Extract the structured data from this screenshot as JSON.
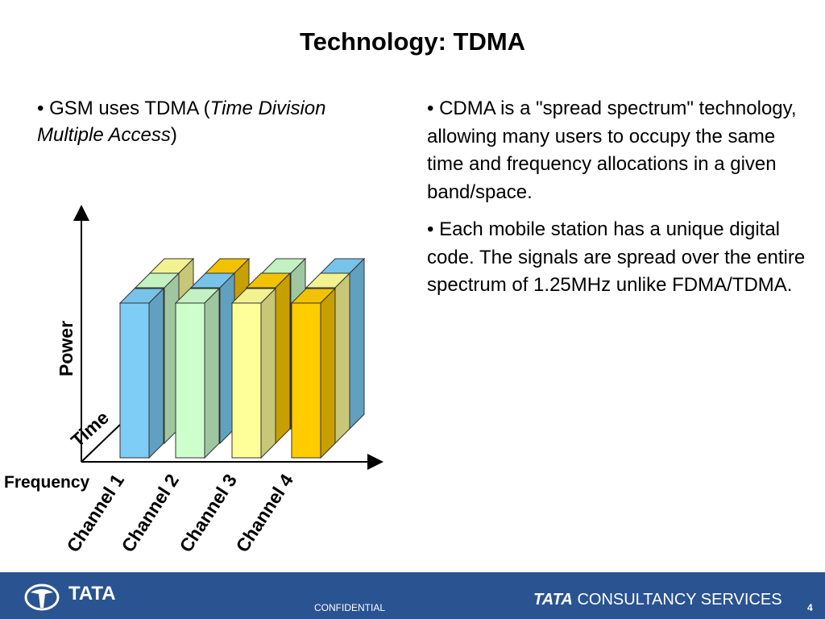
{
  "title": "Technology: TDMA",
  "left": {
    "bullet": "•",
    "text_before": " GSM uses TDMA (",
    "italic": "Time Division Multiple Access",
    "text_after": ")"
  },
  "right": {
    "bullets": [
      "• CDMA is a \"spread spectrum\" technology, allowing many users to occupy the same time and frequency allocations in a given band/space.",
      "• Each mobile station has a unique digital code. The signals are spread over the entire spectrum of 1.25MHz unlike FDMA/TDMA."
    ]
  },
  "diagram": {
    "y_axis_label": "Power",
    "z_axis_label": "Time",
    "x_axis_label": "Frequency",
    "channels": [
      "Channel 1",
      "Channel 2",
      "Channel 3",
      "Channel 4"
    ]
  },
  "colors": {
    "blue": "#7ecdf6",
    "green": "#ccffcc",
    "yellow": "#ffff99",
    "orange": "#ffcc00",
    "footer": "#2a5391"
  },
  "footer": {
    "logo_word": "TATA",
    "confidential": "CONFIDENTIAL",
    "brand_bold": "TATA",
    "brand_rest": "CONSULTANCY SERVICES",
    "page": "4"
  }
}
